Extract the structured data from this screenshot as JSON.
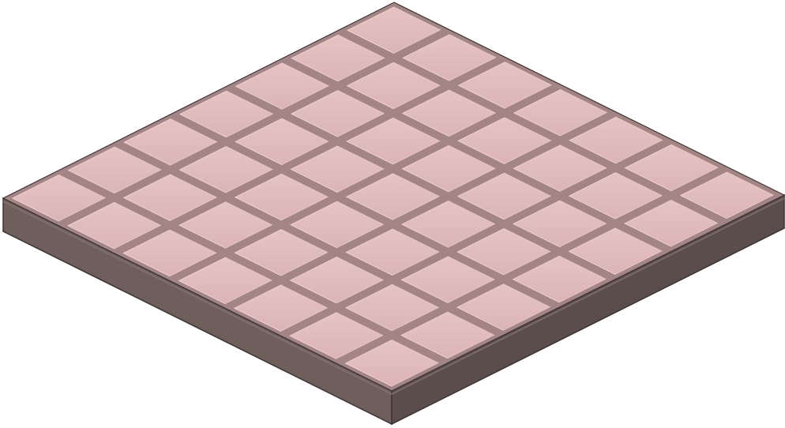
{
  "tile_board": {
    "rows": 7,
    "cols": 7,
    "colors": {
      "tile_top": "#dfb9b9",
      "tile_highlight": "#ecc9c9",
      "grout_line": "#a38585",
      "board_side_left": "#6e5f5d",
      "board_side_right": "#5a4d4b",
      "board_edge": "#3e3433",
      "background": "#ffffff"
    }
  }
}
